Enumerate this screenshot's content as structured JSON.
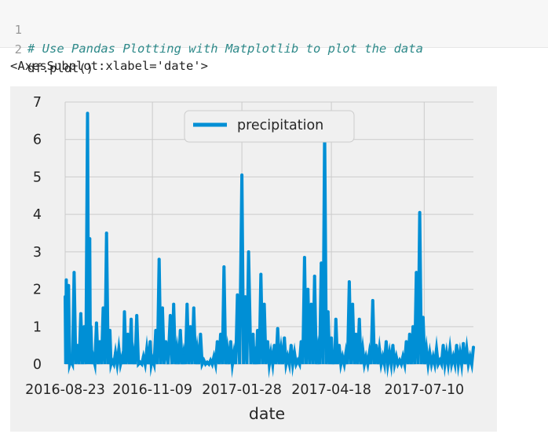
{
  "code_cell": {
    "lines": [
      {
        "number": "1",
        "text": "# Use Pandas Plotting with Matplotlib to plot the data",
        "kind": "comment"
      },
      {
        "number": "2",
        "text": "df.plot()",
        "kind": "code"
      }
    ]
  },
  "output_text": "<AxesSubplot:xlabel='date'>",
  "colors": {
    "series": "#008fd5",
    "plot_background": "#f0f0f0",
    "grid": "#cbcbcb",
    "comment": "#2f8a8a"
  },
  "chart_data": {
    "type": "line",
    "xlabel": "date",
    "ylabel": "",
    "ylim": [
      0,
      7
    ],
    "yticks": [
      0,
      1,
      2,
      3,
      4,
      5,
      6,
      7
    ],
    "xticks": [
      "2016-08-23",
      "2016-11-09",
      "2017-01-28",
      "2017-04-18",
      "2017-07-10"
    ],
    "xlim": [
      "2016-08-23",
      "2017-08-23"
    ],
    "grid": true,
    "legend_position": "top-center",
    "series": [
      {
        "name": "precipitation",
        "x": [
          "2016-08-23",
          "2016-08-24",
          "2016-08-26",
          "2016-08-28",
          "2016-08-31",
          "2016-09-03",
          "2016-09-06",
          "2016-09-09",
          "2016-09-12",
          "2016-09-14",
          "2016-09-15",
          "2016-09-17",
          "2016-09-20",
          "2016-09-23",
          "2016-09-26",
          "2016-09-29",
          "2016-10-02",
          "2016-10-04",
          "2016-10-07",
          "2016-10-10",
          "2016-10-13",
          "2016-10-15",
          "2016-10-18",
          "2016-10-21",
          "2016-10-23",
          "2016-10-26",
          "2016-10-29",
          "2016-11-01",
          "2016-11-04",
          "2016-11-07",
          "2016-11-09",
          "2016-11-12",
          "2016-11-15",
          "2016-11-18",
          "2016-11-21",
          "2016-11-25",
          "2016-11-28",
          "2016-12-01",
          "2016-12-04",
          "2016-12-07",
          "2016-12-10",
          "2016-12-13",
          "2016-12-16",
          "2016-12-19",
          "2016-12-22",
          "2016-12-25",
          "2016-12-28",
          "2016-12-31",
          "2017-01-03",
          "2017-01-06",
          "2017-01-09",
          "2017-01-12",
          "2017-01-15",
          "2017-01-18",
          "2017-01-21",
          "2017-01-24",
          "2017-01-28",
          "2017-01-31",
          "2017-02-03",
          "2017-02-07",
          "2017-02-09",
          "2017-02-11",
          "2017-02-14",
          "2017-02-17",
          "2017-02-20",
          "2017-02-23",
          "2017-02-26",
          "2017-03-01",
          "2017-03-04",
          "2017-03-07",
          "2017-03-10",
          "2017-03-13",
          "2017-03-16",
          "2017-03-19",
          "2017-03-22",
          "2017-03-25",
          "2017-03-28",
          "2017-03-31",
          "2017-04-03",
          "2017-04-06",
          "2017-04-09",
          "2017-04-12",
          "2017-04-15",
          "2017-04-18",
          "2017-04-20",
          "2017-04-22",
          "2017-04-25",
          "2017-04-28",
          "2017-05-01",
          "2017-05-04",
          "2017-05-07",
          "2017-05-10",
          "2017-05-13",
          "2017-05-16",
          "2017-05-19",
          "2017-05-22",
          "2017-05-25",
          "2017-05-28",
          "2017-05-31",
          "2017-06-03",
          "2017-06-06",
          "2017-06-09",
          "2017-06-12",
          "2017-06-15",
          "2017-06-18",
          "2017-06-21",
          "2017-06-24",
          "2017-06-27",
          "2017-06-30",
          "2017-07-03",
          "2017-07-06",
          "2017-07-09",
          "2017-07-12",
          "2017-07-15",
          "2017-07-18",
          "2017-07-21",
          "2017-07-24",
          "2017-07-27",
          "2017-07-30",
          "2017-08-02",
          "2017-08-05",
          "2017-08-08",
          "2017-08-11",
          "2017-08-14",
          "2017-08-17",
          "2017-08-20",
          "2017-08-23"
        ],
        "values": [
          1.8,
          2.25,
          2.1,
          0.1,
          2.45,
          0.5,
          1.35,
          1.0,
          6.7,
          3.35,
          1.0,
          0.2,
          1.1,
          0.6,
          1.5,
          3.5,
          0.9,
          0.1,
          0.3,
          0.4,
          0.2,
          1.4,
          0.8,
          1.2,
          0.3,
          1.3,
          0.05,
          0.2,
          0.4,
          0.6,
          0.15,
          0.9,
          2.8,
          1.5,
          0.6,
          1.3,
          1.6,
          0.4,
          0.9,
          0.3,
          1.6,
          1.0,
          1.5,
          0.4,
          0.8,
          0.1,
          0.05,
          0.1,
          0.2,
          0.6,
          0.8,
          2.6,
          0.4,
          0.6,
          0.3,
          1.85,
          5.05,
          1.8,
          3.0,
          0.8,
          0.2,
          0.9,
          2.4,
          1.6,
          0.6,
          0.3,
          0.5,
          0.95,
          0.4,
          0.7,
          0.2,
          0.5,
          0.3,
          0.1,
          0.6,
          2.85,
          2.0,
          1.6,
          2.35,
          0.4,
          2.7,
          6.25,
          1.4,
          0.7,
          0.3,
          1.2,
          0.5,
          0.2,
          0.3,
          2.2,
          1.6,
          0.8,
          1.2,
          0.4,
          0.2,
          0.3,
          1.7,
          0.5,
          0.4,
          0.2,
          0.6,
          0.3,
          0.5,
          0.2,
          0.1,
          0.2,
          0.6,
          0.8,
          1.0,
          2.45,
          4.05,
          1.25,
          0.4,
          0.3,
          0.2,
          0.4,
          0.1,
          0.5,
          0.3,
          0.4,
          0.2,
          0.5,
          0.3,
          0.55,
          0.4,
          0.2,
          0.45
        ]
      }
    ]
  }
}
